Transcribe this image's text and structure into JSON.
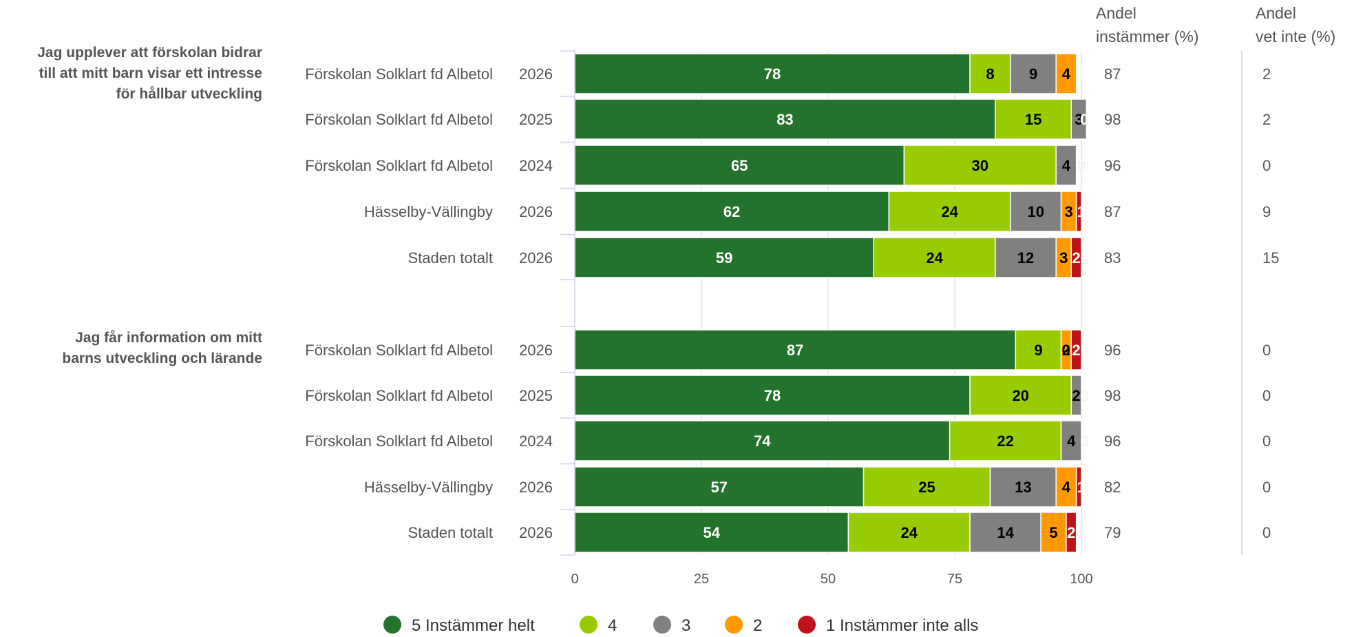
{
  "chart_data": {
    "type": "bar",
    "orientation": "horizontal",
    "stacked": true,
    "xlim": [
      0,
      100
    ],
    "xticks": [
      "0",
      "25",
      "50",
      "75",
      "100"
    ],
    "grid": true,
    "legend_position": "bottom",
    "series": [
      {
        "name": "5 Instämmer helt",
        "color": "#24732c",
        "label_color": "#ffffff"
      },
      {
        "name": "4",
        "color": "#99cc00",
        "label_color": "#000000"
      },
      {
        "name": "3",
        "color": "#808080",
        "label_color": "#000000"
      },
      {
        "name": "2",
        "color": "#ff9900",
        "label_color": "#000000"
      },
      {
        "name": "1 Instämmer inte alls",
        "color": "#c0121a",
        "label_color": "#ffffff"
      }
    ],
    "columns": [
      {
        "line1": "Andel",
        "line2": "instämmer (%)"
      },
      {
        "line1": "Andel",
        "line2": "vet inte (%)"
      }
    ],
    "groups": [
      {
        "question": [
          "Jag upplever att förskolan bidrar",
          "till att mitt barn visar ett intresse",
          "för hållbar utveckling"
        ],
        "rows": [
          {
            "name": "Förskolan Solklart fd Albetol",
            "year": "2026",
            "values": [
              78,
              8,
              9,
              4,
              0
            ],
            "andel_instammer": "87",
            "andel_vet_inte": "2"
          },
          {
            "name": "Förskolan Solklart fd Albetol",
            "year": "2025",
            "values": [
              83,
              15,
              3,
              0,
              0
            ],
            "andel_instammer": "98",
            "andel_vet_inte": "2"
          },
          {
            "name": "Förskolan Solklart fd Albetol",
            "year": "2024",
            "values": [
              65,
              30,
              4,
              0,
              0
            ],
            "andel_instammer": "96",
            "andel_vet_inte": "0"
          },
          {
            "name": "Hässelby-Vällingby",
            "year": "2026",
            "values": [
              62,
              24,
              10,
              3,
              1
            ],
            "andel_instammer": "87",
            "andel_vet_inte": "9"
          },
          {
            "name": "Staden totalt",
            "year": "2026",
            "values": [
              59,
              24,
              12,
              3,
              2
            ],
            "andel_instammer": "83",
            "andel_vet_inte": "15"
          }
        ]
      },
      {
        "question": [
          "Jag får information om mitt",
          "barns utveckling och lärande"
        ],
        "rows": [
          {
            "name": "Förskolan Solklart fd Albetol",
            "year": "2026",
            "values": [
              87,
              9,
              0,
              2,
              2
            ],
            "andel_instammer": "96",
            "andel_vet_inte": "0"
          },
          {
            "name": "Förskolan Solklart fd Albetol",
            "year": "2025",
            "values": [
              78,
              20,
              2,
              0,
              0
            ],
            "andel_instammer": "98",
            "andel_vet_inte": "0"
          },
          {
            "name": "Förskolan Solklart fd Albetol",
            "year": "2024",
            "values": [
              74,
              22,
              4,
              0,
              0
            ],
            "andel_instammer": "96",
            "andel_vet_inte": "0"
          },
          {
            "name": "Hässelby-Vällingby",
            "year": "2026",
            "values": [
              57,
              25,
              13,
              4,
              1
            ],
            "andel_instammer": "82",
            "andel_vet_inte": "0"
          },
          {
            "name": "Staden totalt",
            "year": "2026",
            "values": [
              54,
              24,
              14,
              5,
              2
            ],
            "andel_instammer": "79",
            "andel_vet_inte": "0"
          }
        ]
      }
    ]
  }
}
